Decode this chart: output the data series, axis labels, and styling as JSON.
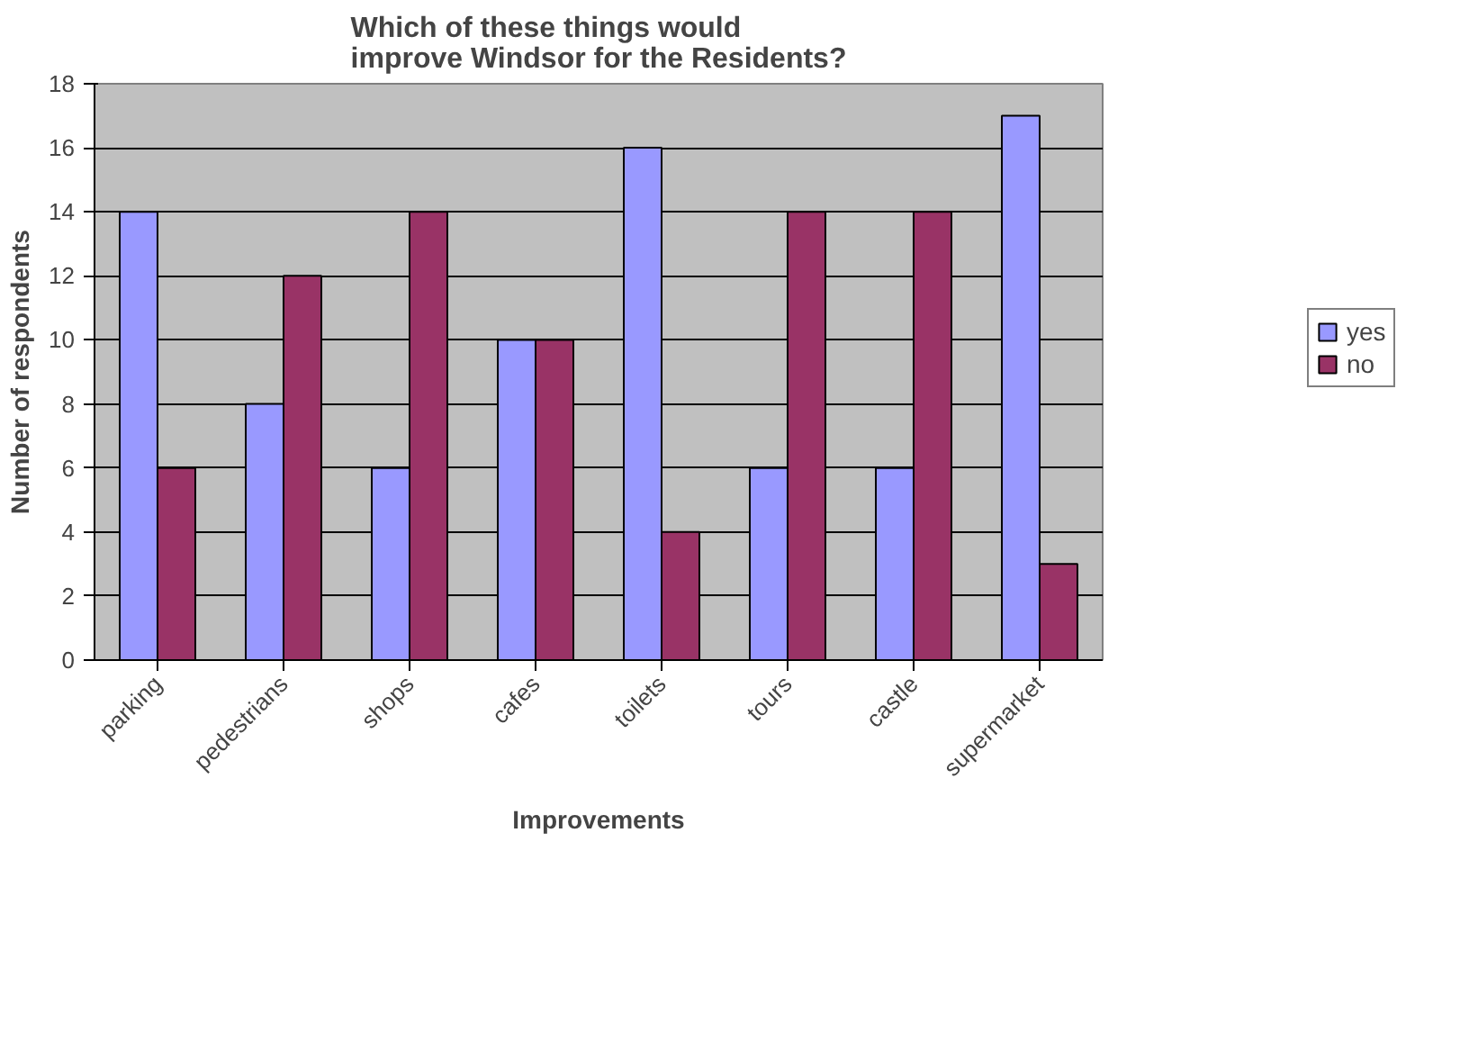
{
  "chart_data": {
    "type": "bar",
    "title": "Which of these things would improve Windsor for the Residents?",
    "xlabel": "Improvements",
    "ylabel": "Number of respondents",
    "categories": [
      "parking",
      "pedestrians",
      "shops",
      "cafes",
      "toilets",
      "tours",
      "castle",
      "supermarket"
    ],
    "series": [
      {
        "name": "yes",
        "color": "#9999ff",
        "values": [
          14,
          8,
          6,
          10,
          16,
          6,
          6,
          17
        ]
      },
      {
        "name": "no",
        "color": "#993366",
        "values": [
          6,
          12,
          14,
          10,
          4,
          14,
          14,
          3
        ]
      }
    ],
    "ylim": [
      0,
      18
    ],
    "yticks": [
      0,
      2,
      4,
      6,
      8,
      10,
      12,
      14,
      16,
      18
    ],
    "grid": "y",
    "legend": "right"
  }
}
